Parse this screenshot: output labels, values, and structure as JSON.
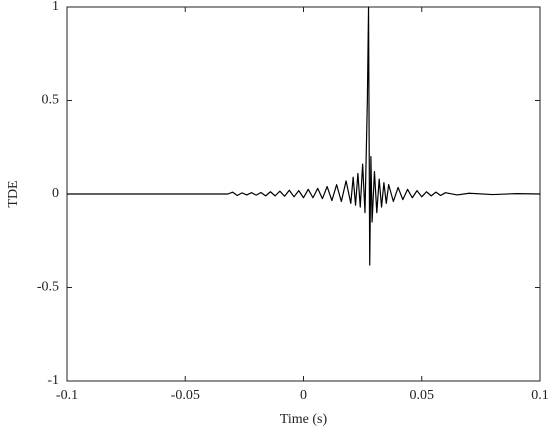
{
  "chart_data": {
    "type": "line",
    "xlabel": "Time (s)",
    "ylabel": "TDE",
    "x": [
      -0.1,
      -0.08,
      -0.06,
      -0.04,
      -0.032,
      -0.03,
      -0.028,
      -0.026,
      -0.024,
      -0.022,
      -0.02,
      -0.018,
      -0.016,
      -0.014,
      -0.012,
      -0.01,
      -0.008,
      -0.006,
      -0.004,
      -0.002,
      0,
      0.002,
      0.004,
      0.006,
      0.008,
      0.01,
      0.012,
      0.014,
      0.016,
      0.018,
      0.02,
      0.021,
      0.022,
      0.023,
      0.024,
      0.025,
      0.026,
      0.027,
      0.0275,
      0.028,
      0.0285,
      0.029,
      0.03,
      0.031,
      0.032,
      0.033,
      0.034,
      0.035,
      0.036,
      0.038,
      0.04,
      0.042,
      0.044,
      0.046,
      0.048,
      0.05,
      0.052,
      0.054,
      0.056,
      0.058,
      0.06,
      0.065,
      0.07,
      0.08,
      0.09,
      0.1
    ],
    "series": [
      {
        "name": "TDE",
        "color": "#000000",
        "values": [
          0,
          0,
          0,
          0,
          0,
          0.01,
          -0.008,
          0.006,
          -0.005,
          0.007,
          -0.006,
          0.008,
          -0.01,
          0.012,
          -0.01,
          0.015,
          -0.012,
          0.02,
          -0.015,
          0.018,
          -0.02,
          0.025,
          -0.02,
          0.03,
          -0.025,
          0.04,
          -0.035,
          0.05,
          -0.04,
          0.07,
          -0.05,
          0.09,
          -0.06,
          0.11,
          -0.07,
          0.16,
          -0.1,
          0.5,
          1.0,
          -0.38,
          0.2,
          -0.15,
          0.12,
          -0.1,
          0.08,
          -0.07,
          0.06,
          -0.05,
          0.05,
          -0.04,
          0.035,
          -0.03,
          0.025,
          -0.02,
          0.018,
          -0.015,
          0.012,
          -0.01,
          0.01,
          -0.008,
          0.007,
          -0.005,
          0.004,
          -0.003,
          0.002,
          0
        ]
      }
    ],
    "xlim": [
      -0.1,
      0.1
    ],
    "ylim": [
      -1,
      1
    ],
    "xticks": [
      -0.1,
      -0.05,
      0,
      0.05,
      0.1
    ],
    "yticks": [
      -1,
      -0.5,
      0,
      0.5,
      1
    ],
    "grid": false
  }
}
